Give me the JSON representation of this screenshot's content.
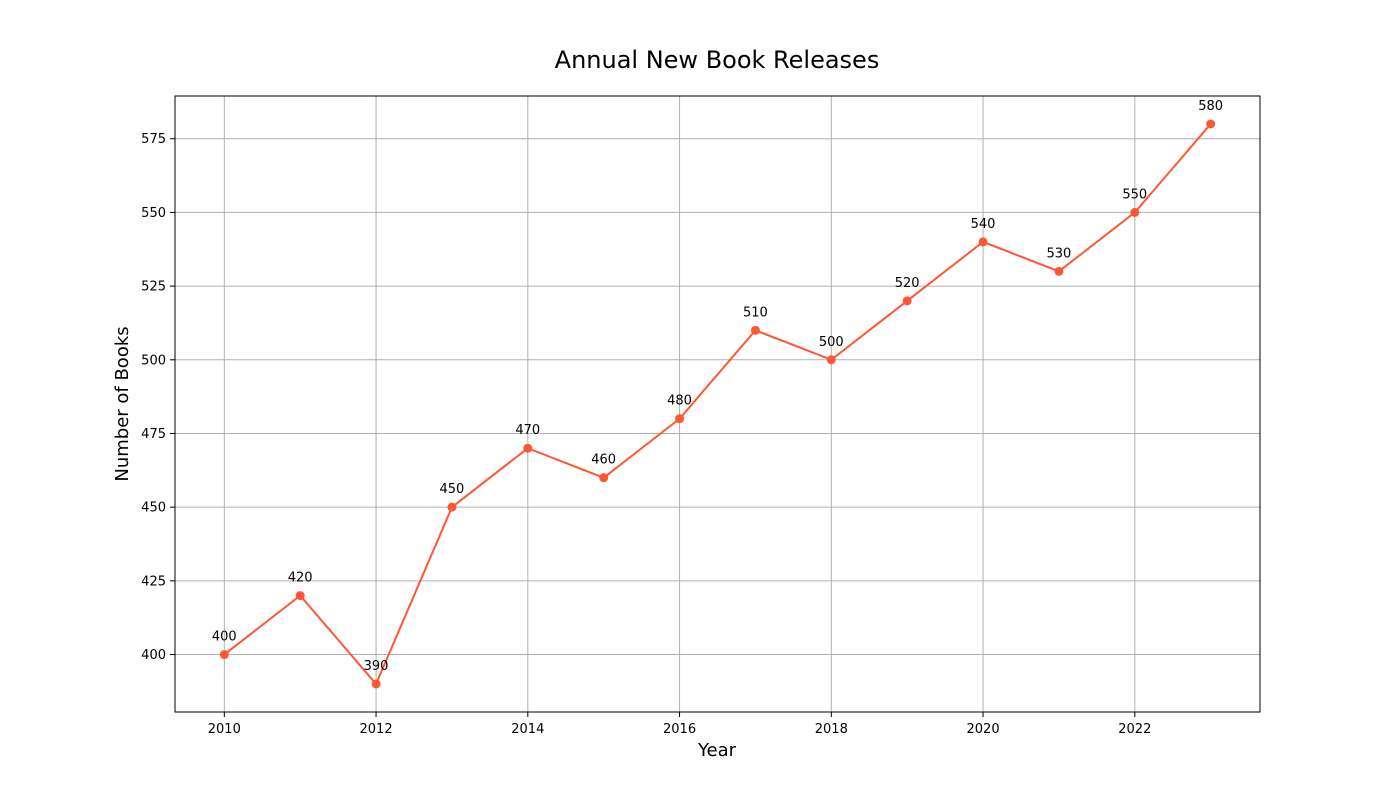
{
  "chart_data": {
    "type": "line",
    "title": "Annual New Book Releases",
    "xlabel": "Year",
    "ylabel": "Number of Books",
    "x": [
      2010,
      2011,
      2012,
      2013,
      2014,
      2015,
      2016,
      2017,
      2018,
      2019,
      2020,
      2021,
      2022,
      2023
    ],
    "series": [
      {
        "values": [
          400,
          420,
          390,
          450,
          470,
          460,
          480,
          510,
          500,
          520,
          540,
          530,
          550,
          580
        ],
        "color": "#ff5733",
        "marker": "circle"
      }
    ],
    "data_labels": [
      "400",
      "420",
      "390",
      "450",
      "470",
      "460",
      "480",
      "510",
      "500",
      "520",
      "540",
      "530",
      "550",
      "580"
    ],
    "xlim": [
      2009.35,
      2023.65
    ],
    "ylim": [
      380.5,
      589.5
    ],
    "xticks": [
      "2010",
      "2012",
      "2014",
      "2016",
      "2018",
      "2020",
      "2022"
    ],
    "yticks": [
      "400",
      "425",
      "450",
      "475",
      "500",
      "525",
      "550",
      "575"
    ],
    "grid": true,
    "legend": "none"
  }
}
